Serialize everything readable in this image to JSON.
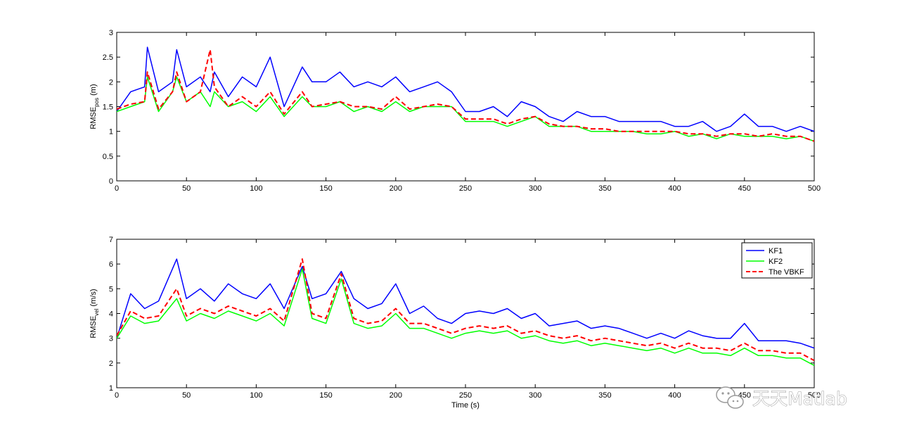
{
  "chart_data": [
    {
      "type": "line",
      "title": "",
      "xlabel": "",
      "ylabel": "RMSE_pos (m)",
      "ylabel_parts": {
        "base": "RMSE",
        "sub": "pos",
        "unit": " (m)"
      },
      "xlim": [
        0,
        500
      ],
      "ylim": [
        0,
        3
      ],
      "xticks": [
        0,
        50,
        100,
        150,
        200,
        250,
        300,
        350,
        400,
        450,
        500
      ],
      "yticks": [
        0,
        0.5,
        1,
        1.5,
        2,
        2.5,
        3
      ],
      "xtick_labels": [
        "0",
        "50",
        "100",
        "150",
        "200",
        "250",
        "300",
        "350",
        "400",
        "450",
        "500"
      ],
      "ytick_labels": [
        "0",
        "0.5",
        "1",
        "1.5",
        "2",
        "2.5",
        "3"
      ],
      "grid": false,
      "x": [
        0,
        10,
        20,
        22,
        30,
        40,
        43,
        50,
        60,
        67,
        70,
        80,
        90,
        100,
        110,
        120,
        133,
        140,
        150,
        160,
        170,
        180,
        190,
        200,
        210,
        220,
        230,
        240,
        250,
        260,
        270,
        280,
        290,
        300,
        310,
        320,
        330,
        340,
        350,
        360,
        370,
        380,
        390,
        400,
        410,
        420,
        430,
        440,
        450,
        460,
        470,
        480,
        490,
        500
      ],
      "series": [
        {
          "name": "KF1",
          "color": "#0000ff",
          "dash": "solid",
          "values": [
            1.4,
            1.8,
            1.9,
            2.7,
            1.8,
            2.0,
            2.65,
            1.9,
            2.1,
            1.8,
            2.2,
            1.7,
            2.1,
            1.9,
            2.5,
            1.5,
            2.3,
            2.0,
            2.0,
            2.2,
            1.9,
            2.0,
            1.9,
            2.1,
            1.8,
            1.9,
            2.0,
            1.8,
            1.4,
            1.4,
            1.5,
            1.3,
            1.6,
            1.5,
            1.3,
            1.2,
            1.4,
            1.3,
            1.3,
            1.2,
            1.2,
            1.2,
            1.2,
            1.1,
            1.1,
            1.2,
            1.0,
            1.1,
            1.35,
            1.1,
            1.1,
            1.0,
            1.1,
            1.0
          ]
        },
        {
          "name": "KF2",
          "color": "#00ff00",
          "dash": "solid",
          "values": [
            1.4,
            1.5,
            1.6,
            2.1,
            1.4,
            1.8,
            2.1,
            1.6,
            1.8,
            1.5,
            1.8,
            1.5,
            1.6,
            1.4,
            1.7,
            1.3,
            1.7,
            1.5,
            1.5,
            1.6,
            1.4,
            1.5,
            1.4,
            1.6,
            1.4,
            1.5,
            1.5,
            1.5,
            1.2,
            1.2,
            1.2,
            1.1,
            1.2,
            1.3,
            1.1,
            1.1,
            1.1,
            1.0,
            1.0,
            1.0,
            1.0,
            0.95,
            0.95,
            1.0,
            0.9,
            0.95,
            0.85,
            0.95,
            0.9,
            0.9,
            0.9,
            0.85,
            0.9,
            0.8
          ]
        },
        {
          "name": "The VBKF",
          "color": "#ff0000",
          "dash": "dashed",
          "values": [
            1.45,
            1.55,
            1.6,
            2.2,
            1.45,
            1.8,
            2.2,
            1.6,
            1.8,
            2.65,
            1.9,
            1.5,
            1.7,
            1.5,
            1.8,
            1.35,
            1.8,
            1.5,
            1.55,
            1.6,
            1.5,
            1.5,
            1.45,
            1.7,
            1.45,
            1.5,
            1.55,
            1.5,
            1.25,
            1.25,
            1.25,
            1.15,
            1.25,
            1.3,
            1.15,
            1.1,
            1.1,
            1.05,
            1.05,
            1.0,
            1.0,
            1.0,
            1.0,
            1.0,
            0.95,
            0.95,
            0.9,
            0.95,
            0.95,
            0.9,
            0.95,
            0.9,
            0.9,
            0.8
          ]
        }
      ]
    },
    {
      "type": "line",
      "title": "",
      "xlabel": "Time (s)",
      "ylabel": "RMSE_vel (m/s)",
      "ylabel_parts": {
        "base": "RMSE",
        "sub": "vel",
        "unit": " (m/s)"
      },
      "xlim": [
        0,
        500
      ],
      "ylim": [
        1,
        7
      ],
      "xticks": [
        0,
        50,
        100,
        150,
        200,
        250,
        300,
        350,
        400,
        450,
        500
      ],
      "yticks": [
        1,
        2,
        3,
        4,
        5,
        6,
        7
      ],
      "xtick_labels": [
        "0",
        "50",
        "100",
        "150",
        "200",
        "250",
        "300",
        "350",
        "400",
        "450",
        "500"
      ],
      "ytick_labels": [
        "1",
        "2",
        "3",
        "4",
        "5",
        "6",
        "7"
      ],
      "grid": false,
      "legend": {
        "position": "top-right",
        "entries": [
          "KF1",
          "KF2",
          "The VBKF"
        ]
      },
      "x": [
        0,
        10,
        20,
        30,
        43,
        50,
        60,
        70,
        80,
        90,
        100,
        110,
        120,
        133,
        140,
        150,
        161,
        170,
        180,
        190,
        200,
        210,
        220,
        230,
        240,
        250,
        260,
        270,
        280,
        290,
        300,
        310,
        320,
        330,
        340,
        350,
        360,
        370,
        380,
        390,
        400,
        410,
        420,
        430,
        440,
        450,
        460,
        470,
        480,
        490,
        500
      ],
      "series": [
        {
          "name": "KF1",
          "color": "#0000ff",
          "dash": "solid",
          "values": [
            3.0,
            4.8,
            4.2,
            4.5,
            6.2,
            4.6,
            5.0,
            4.5,
            5.2,
            4.8,
            4.6,
            5.2,
            4.2,
            5.9,
            4.6,
            4.8,
            5.7,
            4.6,
            4.2,
            4.4,
            5.2,
            4.0,
            4.3,
            3.8,
            3.6,
            4.0,
            4.1,
            4.0,
            4.2,
            3.8,
            4.0,
            3.5,
            3.6,
            3.7,
            3.4,
            3.5,
            3.4,
            3.2,
            3.0,
            3.2,
            3.0,
            3.3,
            3.1,
            3.0,
            3.0,
            3.6,
            2.9,
            2.9,
            2.9,
            2.8,
            2.6
          ]
        },
        {
          "name": "KF2",
          "color": "#00ff00",
          "dash": "solid",
          "values": [
            3.0,
            3.9,
            3.6,
            3.7,
            4.6,
            3.7,
            4.0,
            3.8,
            4.1,
            3.9,
            3.7,
            4.0,
            3.5,
            5.8,
            3.8,
            3.6,
            5.4,
            3.6,
            3.4,
            3.5,
            4.0,
            3.4,
            3.4,
            3.2,
            3.0,
            3.2,
            3.3,
            3.2,
            3.3,
            3.0,
            3.1,
            2.9,
            2.8,
            2.9,
            2.7,
            2.8,
            2.7,
            2.6,
            2.5,
            2.6,
            2.4,
            2.6,
            2.4,
            2.4,
            2.3,
            2.6,
            2.3,
            2.3,
            2.2,
            2.2,
            1.9
          ]
        },
        {
          "name": "The VBKF",
          "color": "#ff0000",
          "dash": "dashed",
          "values": [
            3.1,
            4.1,
            3.8,
            3.9,
            5.0,
            3.9,
            4.2,
            4.0,
            4.3,
            4.1,
            3.9,
            4.2,
            3.7,
            6.2,
            4.0,
            3.8,
            5.6,
            3.8,
            3.6,
            3.7,
            4.2,
            3.6,
            3.6,
            3.4,
            3.2,
            3.4,
            3.5,
            3.4,
            3.5,
            3.2,
            3.3,
            3.1,
            3.0,
            3.1,
            2.9,
            3.0,
            2.9,
            2.8,
            2.7,
            2.8,
            2.6,
            2.8,
            2.6,
            2.6,
            2.5,
            2.8,
            2.5,
            2.5,
            2.4,
            2.4,
            2.1
          ]
        }
      ]
    }
  ],
  "watermark": {
    "text": "天天Matlab",
    "icon": "wechat-logo-icon"
  }
}
